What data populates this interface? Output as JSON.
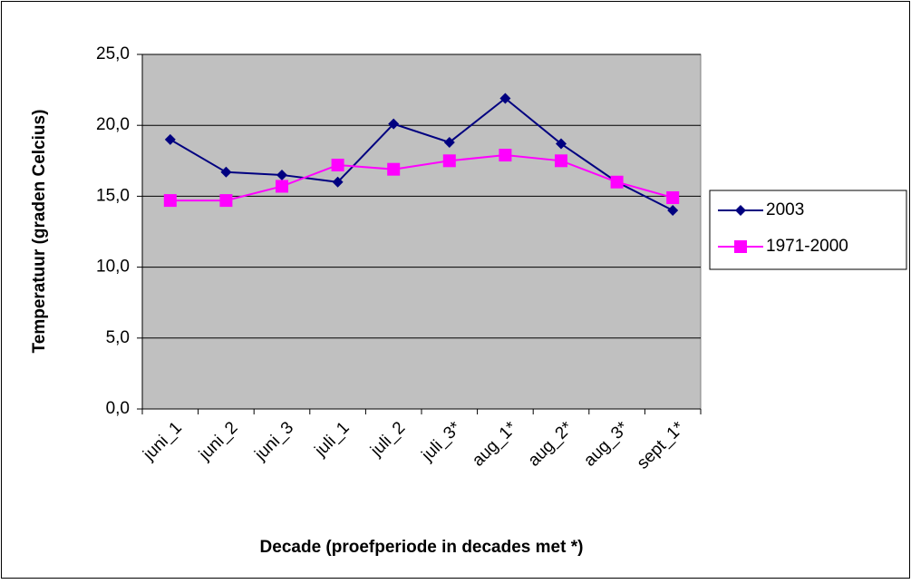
{
  "chart_data": {
    "type": "line",
    "xlabel": "Decade (proefperiode in decades met *)",
    "ylabel": "Temperatuur (graden Celcius)",
    "categories": [
      "juni_1",
      "juni_2",
      "juni_3",
      "juli_1",
      "juli_2",
      "juli_3*",
      "aug_1*",
      "aug_2*",
      "aug_3*",
      "sept_1*"
    ],
    "series": [
      {
        "name": "2003",
        "color": "#000080",
        "marker": "diamond",
        "values": [
          19.0,
          16.7,
          16.5,
          16.0,
          20.1,
          18.8,
          21.9,
          18.7,
          16.0,
          14.0
        ]
      },
      {
        "name": "1971-2000",
        "color": "#ff00ff",
        "marker": "square",
        "values": [
          14.7,
          14.7,
          15.7,
          17.2,
          16.9,
          17.5,
          17.9,
          17.5,
          16.0,
          14.9
        ]
      }
    ],
    "ylim": [
      0,
      25
    ],
    "yticks": [
      {
        "value": 0,
        "label": "0,0"
      },
      {
        "value": 5,
        "label": "5,0"
      },
      {
        "value": 10,
        "label": "10,0"
      },
      {
        "value": 15,
        "label": "15,0"
      },
      {
        "value": 20,
        "label": "20,0"
      },
      {
        "value": 25,
        "label": "25,0"
      }
    ],
    "grid": true,
    "legend": "right"
  }
}
